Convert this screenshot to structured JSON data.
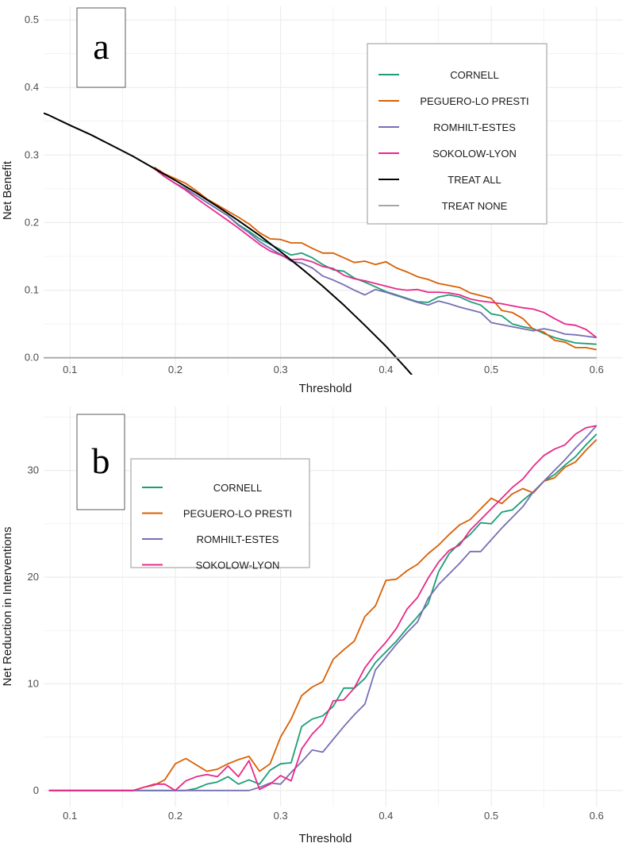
{
  "chart_data": [
    {
      "type": "line",
      "panel_label": "a",
      "xlabel": "Threshold",
      "ylabel": "Net Benefit",
      "xlim": [
        0.075,
        0.625
      ],
      "ylim": [
        -0.025,
        0.52
      ],
      "xticks": [
        0.1,
        0.2,
        0.3,
        0.4,
        0.5,
        0.6
      ],
      "xtick_labels": [
        "0.1",
        "0.2",
        "0.3",
        "0.4",
        "0.5",
        "0.6"
      ],
      "yticks": [
        0,
        0.1,
        0.2,
        0.3,
        0.4,
        0.5
      ],
      "ytick_labels": [
        "0.0",
        "0.1",
        "0.2",
        "0.3",
        "0.4",
        "0.5"
      ],
      "grid": true,
      "legend_position": "top-right",
      "x_start": 0.18,
      "x_step": 0.01,
      "series": [
        {
          "name": "CORNELL",
          "color": "#1b9e77",
          "values": [
            0.28,
            0.268,
            0.258,
            0.25,
            0.24,
            0.23,
            0.22,
            0.21,
            0.197,
            0.187,
            0.176,
            0.168,
            0.16,
            0.152,
            0.155,
            0.148,
            0.138,
            0.13,
            0.128,
            0.118,
            0.112,
            0.105,
            0.098,
            0.093,
            0.088,
            0.083,
            0.082,
            0.09,
            0.093,
            0.09,
            0.083,
            0.078,
            0.065,
            0.062,
            0.05,
            0.046,
            0.043,
            0.036,
            0.03,
            0.026,
            0.022,
            0.021,
            0.02
          ]
        },
        {
          "name": "PEGUERO-LO PRESTI",
          "color": "#d95f02",
          "values": [
            0.282,
            0.272,
            0.265,
            0.258,
            0.247,
            0.235,
            0.226,
            0.217,
            0.208,
            0.198,
            0.185,
            0.176,
            0.175,
            0.17,
            0.17,
            0.162,
            0.155,
            0.155,
            0.148,
            0.141,
            0.143,
            0.138,
            0.142,
            0.133,
            0.127,
            0.12,
            0.116,
            0.11,
            0.107,
            0.104,
            0.096,
            0.092,
            0.088,
            0.07,
            0.067,
            0.058,
            0.042,
            0.038,
            0.026,
            0.023,
            0.015,
            0.015,
            0.012
          ]
        },
        {
          "name": "ROMHILT-ESTES",
          "color": "#7570b3",
          "values": [
            0.28,
            0.268,
            0.258,
            0.25,
            0.24,
            0.23,
            0.22,
            0.21,
            0.196,
            0.185,
            0.172,
            0.162,
            0.153,
            0.143,
            0.14,
            0.133,
            0.121,
            0.115,
            0.108,
            0.1,
            0.093,
            0.101,
            0.097,
            0.092,
            0.087,
            0.082,
            0.078,
            0.084,
            0.08,
            0.075,
            0.071,
            0.067,
            0.052,
            0.049,
            0.046,
            0.043,
            0.04,
            0.043,
            0.04,
            0.035,
            0.034,
            0.032,
            0.03
          ]
        },
        {
          "name": "SOKOLOW-LYON",
          "color": "#e7298a",
          "values": [
            0.28,
            0.268,
            0.258,
            0.248,
            0.236,
            0.225,
            0.214,
            0.203,
            0.192,
            0.18,
            0.168,
            0.158,
            0.152,
            0.145,
            0.146,
            0.142,
            0.135,
            0.132,
            0.122,
            0.117,
            0.114,
            0.11,
            0.106,
            0.102,
            0.1,
            0.101,
            0.097,
            0.097,
            0.096,
            0.093,
            0.087,
            0.084,
            0.082,
            0.08,
            0.077,
            0.074,
            0.072,
            0.067,
            0.058,
            0.05,
            0.048,
            0.042,
            0.03
          ]
        },
        {
          "name": "TREAT ALL",
          "color": "#000000",
          "x": [
            0.075,
            0.08,
            0.1,
            0.12,
            0.14,
            0.16,
            0.18,
            0.2,
            0.22,
            0.24,
            0.26,
            0.28,
            0.3,
            0.32,
            0.34,
            0.36,
            0.38,
            0.4,
            0.42,
            0.43
          ],
          "values": [
            0.362,
            0.359,
            0.344,
            0.33,
            0.314,
            0.298,
            0.28,
            0.2625,
            0.244,
            0.224,
            0.203,
            0.181,
            0.157,
            0.132,
            0.106,
            0.078,
            0.048,
            0.017,
            -0.017,
            -0.035
          ]
        },
        {
          "name": "TREAT NONE",
          "color": "#a6a6a6",
          "x": [
            0.075,
            0.6
          ],
          "values": [
            0,
            0
          ]
        }
      ]
    },
    {
      "type": "line",
      "panel_label": "b",
      "xlabel": "Threshold",
      "ylabel": "Net Reduction in Interventions",
      "xlim": [
        0.075,
        0.625
      ],
      "ylim": [
        -1.5,
        36
      ],
      "xticks": [
        0.1,
        0.2,
        0.3,
        0.4,
        0.5,
        0.6
      ],
      "xtick_labels": [
        "0.1",
        "0.2",
        "0.3",
        "0.4",
        "0.5",
        "0.6"
      ],
      "yticks": [
        0,
        10,
        20,
        30
      ],
      "ytick_labels": [
        "0",
        "10",
        "20",
        "30"
      ],
      "grid": true,
      "legend_position": "top-left",
      "x_start": 0.08,
      "x_step": 0.01,
      "series": [
        {
          "name": "CORNELL",
          "color": "#1b9e77",
          "values": [
            0,
            0,
            0,
            0,
            0,
            0,
            0,
            0,
            0,
            0,
            0,
            0,
            0,
            0,
            0.2,
            0.6,
            0.8,
            1.3,
            0.6,
            1.0,
            0.6,
            1.9,
            2.5,
            2.6,
            6.0,
            6.7,
            7.0,
            7.9,
            9.6,
            9.6,
            10.5,
            12.0,
            13.0,
            14.0,
            15.2,
            16.3,
            17.5,
            20.5,
            22.2,
            23.2,
            24.0,
            25.1,
            25.0,
            26.1,
            26.3,
            27.2,
            28.0,
            29.0,
            29.6,
            30.5,
            31.3,
            32.4,
            33.4
          ]
        },
        {
          "name": "PEGUERO-LO PRESTI",
          "color": "#d95f02",
          "values": [
            0,
            0,
            0,
            0,
            0,
            0,
            0,
            0,
            0,
            0.3,
            0.5,
            1.0,
            2.5,
            3.0,
            2.4,
            1.8,
            2.0,
            2.5,
            2.9,
            3.2,
            1.8,
            2.5,
            5.0,
            6.7,
            8.9,
            9.7,
            10.2,
            12.3,
            13.2,
            14.0,
            16.3,
            17.3,
            19.7,
            19.8,
            20.6,
            21.2,
            22.2,
            23.0,
            24.0,
            24.9,
            25.4,
            26.4,
            27.4,
            26.9,
            27.8,
            28.3,
            27.9,
            29.0,
            29.3,
            30.3,
            30.8,
            31.9,
            32.9
          ]
        },
        {
          "name": "ROMHILT-ESTES",
          "color": "#7570b3",
          "values": [
            0,
            0,
            0,
            0,
            0,
            0,
            0,
            0,
            0,
            0,
            0,
            0,
            0,
            0,
            0,
            0,
            0,
            0,
            0,
            0,
            0.3,
            0.7,
            0.6,
            1.7,
            2.7,
            3.8,
            3.6,
            4.8,
            6.0,
            7.1,
            8.1,
            11.3,
            12.5,
            13.7,
            14.8,
            15.8,
            18.0,
            19.3,
            20.3,
            21.3,
            22.4,
            22.4,
            23.5,
            24.6,
            25.6,
            26.6,
            28.0,
            29.0,
            30.0,
            31.0,
            32.1,
            33.1,
            34.2
          ]
        },
        {
          "name": "SOKOLOW-LYON",
          "color": "#e7298a",
          "values": [
            0,
            0,
            0,
            0,
            0,
            0,
            0,
            0,
            0,
            0.3,
            0.6,
            0.6,
            0,
            0.9,
            1.3,
            1.5,
            1.3,
            2.3,
            1.3,
            2.8,
            0.1,
            0.6,
            1.4,
            0.9,
            3.9,
            5.3,
            6.3,
            8.4,
            8.5,
            9.6,
            11.5,
            12.8,
            13.9,
            15.2,
            17.0,
            18.1,
            19.9,
            21.4,
            22.5,
            23.0,
            24.4,
            25.4,
            26.4,
            27.4,
            28.4,
            29.2,
            30.4,
            31.4,
            32.0,
            32.4,
            33.4,
            34.0,
            34.2
          ]
        }
      ]
    }
  ]
}
